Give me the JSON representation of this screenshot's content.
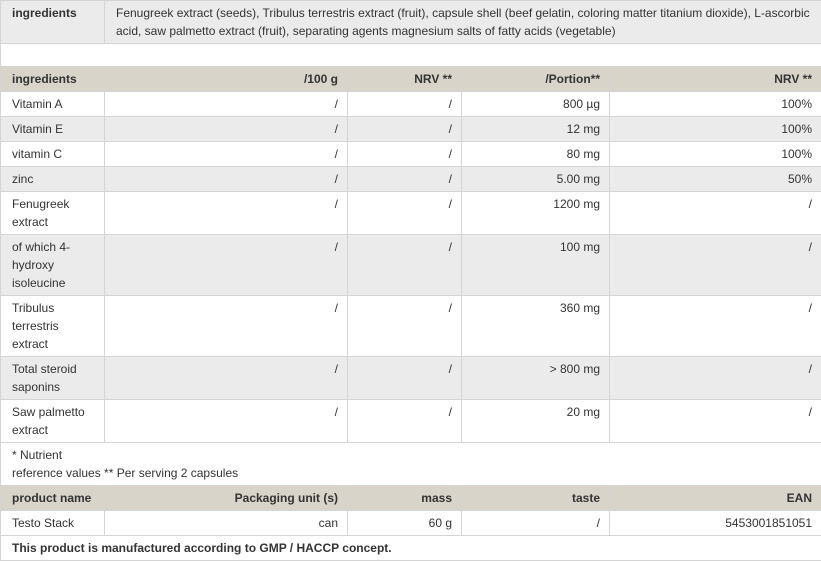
{
  "ingredients_row": {
    "label": "ingredients",
    "text": "Fenugreek extract (seeds), Tribulus terrestris extract (fruit), capsule shell (beef gelatin, coloring matter titanium dioxide), L-ascorbic acid, saw palmetto extract (fruit), separating agents magnesium salts of fatty acids (vegetable)"
  },
  "nutrition": {
    "headers": [
      "ingredients",
      "/100 g",
      "NRV **",
      "/Portion**",
      "NRV **"
    ],
    "rows": [
      [
        "Vitamin A",
        "/",
        "/",
        "800 µg",
        "100%"
      ],
      [
        "Vitamin E",
        "/",
        "/",
        "12 mg",
        "100%"
      ],
      [
        "vitamin C",
        "/",
        "/",
        "80 mg",
        "100%"
      ],
      [
        "zinc",
        "/",
        "/",
        "5.00 mg",
        "50%"
      ],
      [
        "Fenugreek extract",
        "/",
        "/",
        "1200 mg",
        "/"
      ],
      [
        "of which 4-hydroxy isoleucine",
        "/",
        "/",
        "100 mg",
        "/"
      ],
      [
        "Tribulus terrestris extract",
        "/",
        "/",
        "360 mg",
        "/"
      ],
      [
        "Total steroid saponins",
        "/",
        "/",
        "> 800 mg",
        "/"
      ],
      [
        "Saw palmetto extract",
        "/",
        "/",
        "20 mg",
        "/"
      ]
    ],
    "footnote": "* Nutrient\nreference values ** Per serving 2 capsules"
  },
  "product": {
    "headers": [
      "product name",
      "Packaging unit (s)",
      "mass",
      "taste",
      "EAN"
    ],
    "row": [
      "Testo Stack",
      "can",
      "60 g",
      "/",
      "5453001851051"
    ]
  },
  "gmp_note": "This product is manufactured according to GMP / HACCP concept.",
  "colors": {
    "header_bg": "#d9d4c9",
    "alt_row_bg": "#ebebeb",
    "border": "#d4d4d4"
  }
}
